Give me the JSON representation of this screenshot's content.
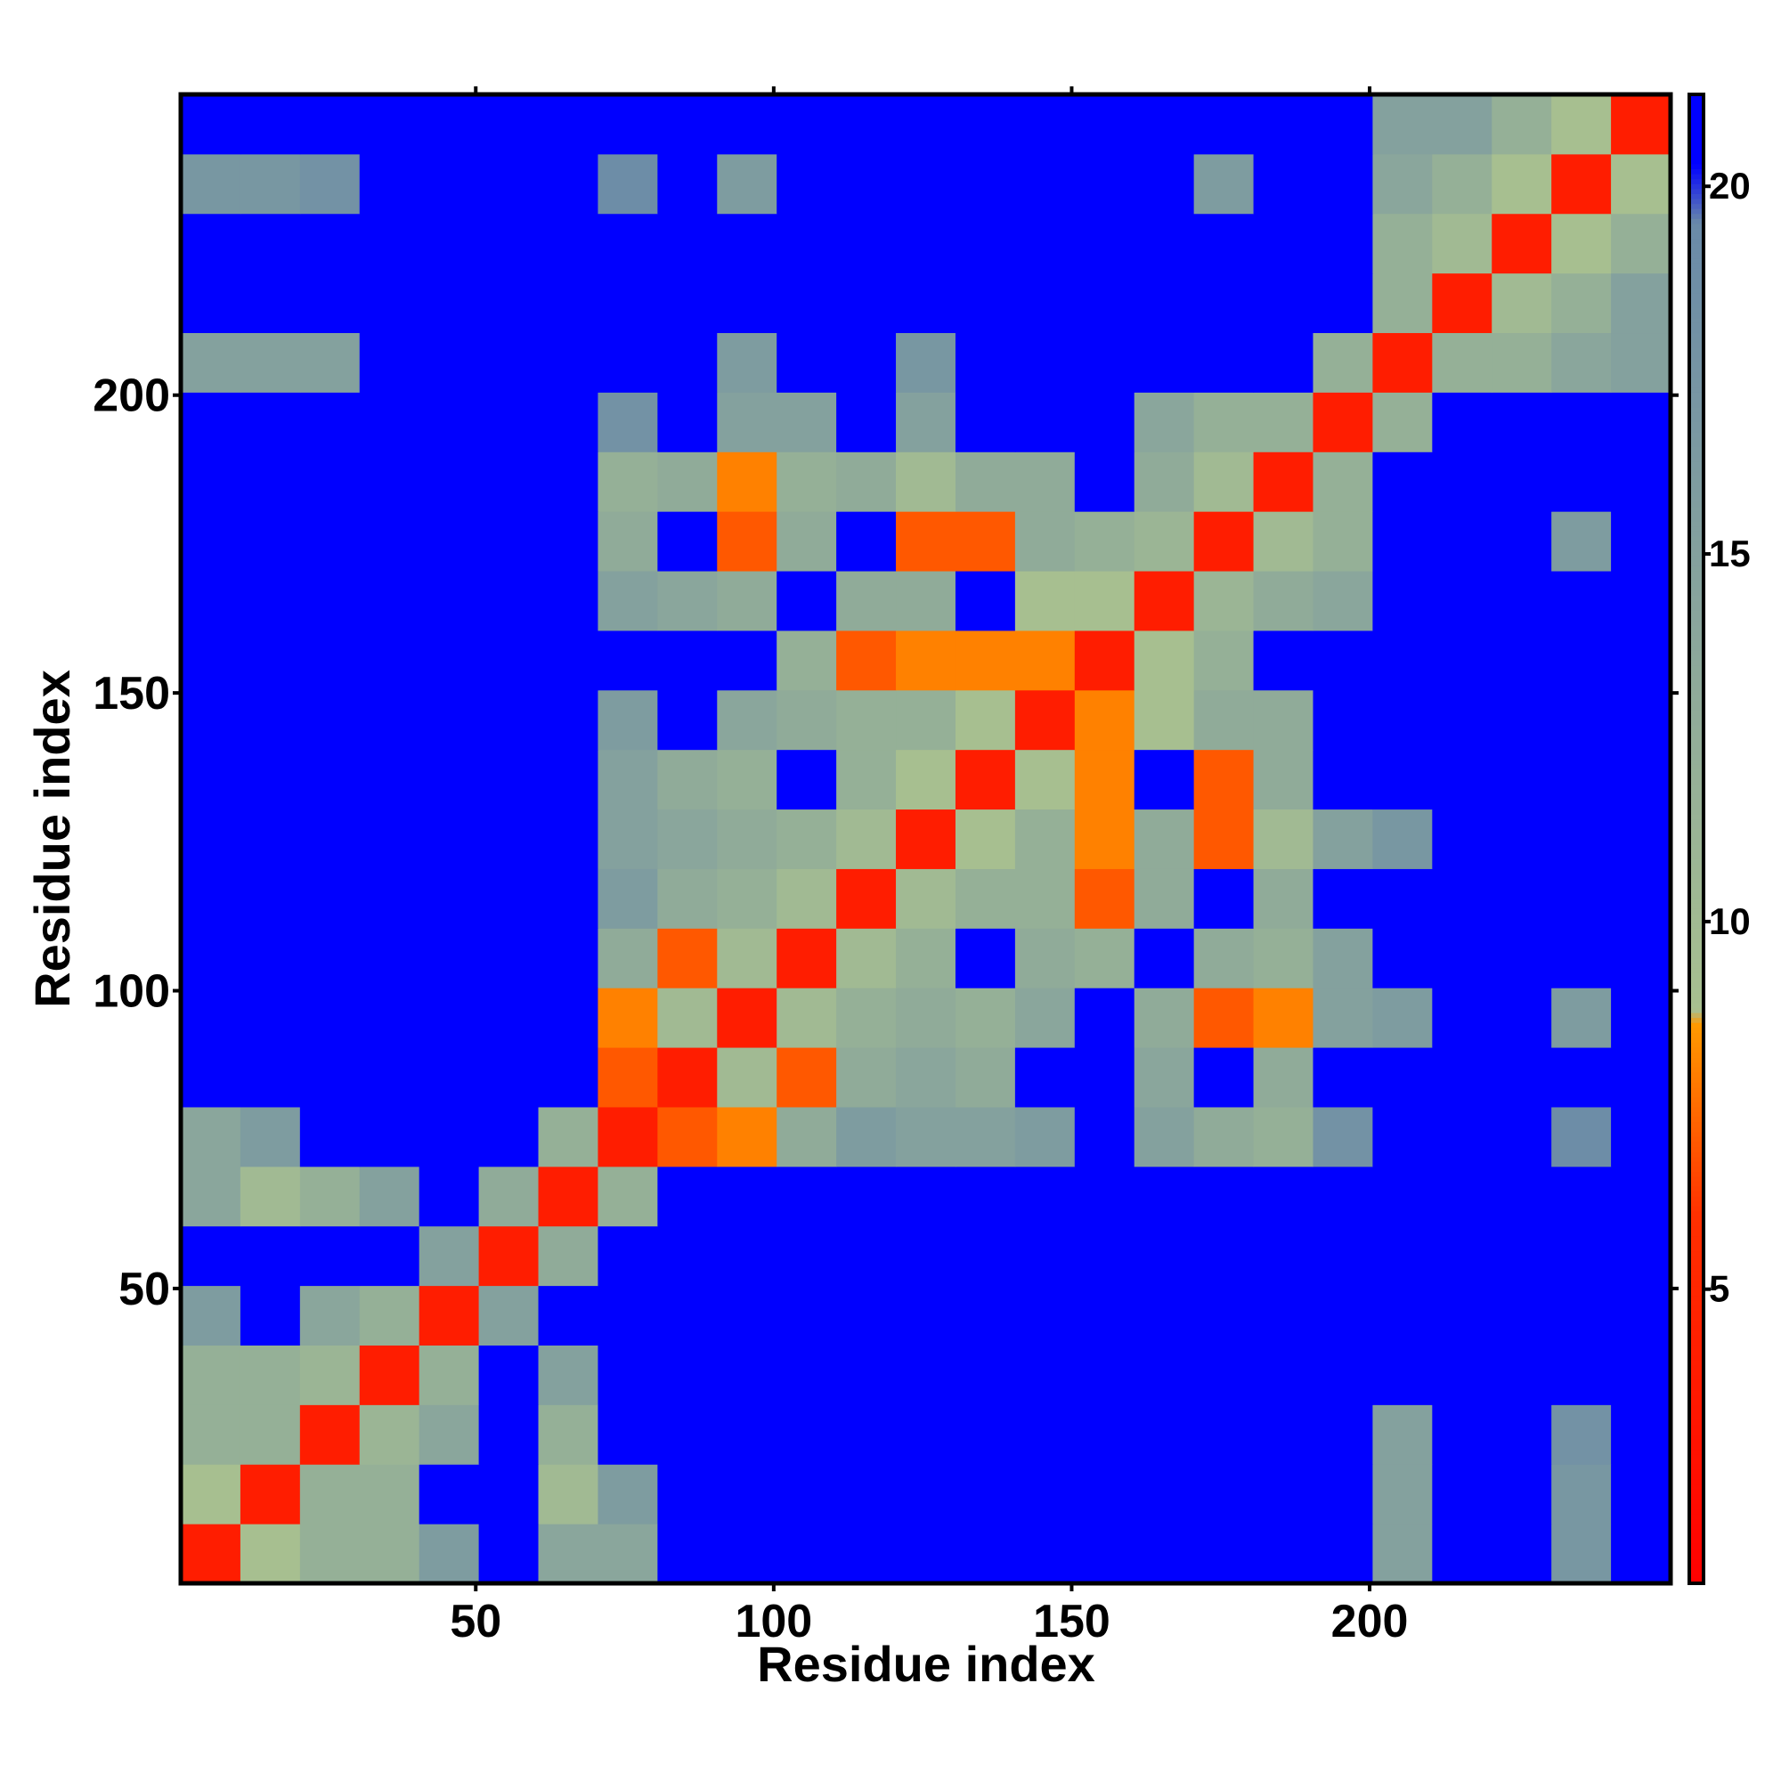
{
  "chart_data": {
    "type": "heatmap",
    "xlabel": "Residue index",
    "ylabel": "Residue index",
    "xlim": [
      0.5,
      250.5
    ],
    "ylim": [
      0.5,
      250.5
    ],
    "xticks": [
      50,
      100,
      150,
      200
    ],
    "yticks": [
      50,
      100,
      150,
      200
    ],
    "zlim": [
      1,
      21.25
    ],
    "zticks": [
      5,
      10,
      15,
      20
    ],
    "colorscale": [
      {
        "value": 1,
        "color": "#ff0000"
      },
      {
        "value": 6,
        "color": "#ff3000"
      },
      {
        "value": 8.6,
        "color": "#ff9900"
      },
      {
        "value": 8.8,
        "color": "#a8c090"
      },
      {
        "value": 19.5,
        "color": "#6a8aa8"
      },
      {
        "value": 20.3,
        "color": "#0000ff"
      },
      {
        "value": 21.25,
        "color": "#0000ff"
      }
    ],
    "xbins": [
      0.5,
      10.5,
      20.5,
      30.5,
      40.5,
      50.5,
      60.5,
      70.5,
      80.5,
      90.5,
      100.5,
      110.5,
      120.5,
      130.5,
      140.5,
      150.5,
      160.5,
      170.5,
      180.5,
      190.5,
      200.5,
      210.5,
      220.5,
      230.5,
      240.5,
      250.5
    ],
    "ybins": [
      0.5,
      10.5,
      20.5,
      30.5,
      40.5,
      50.5,
      60.5,
      70.5,
      80.5,
      90.5,
      100.5,
      110.5,
      120.5,
      130.5,
      140.5,
      150.5,
      160.5,
      170.5,
      180.5,
      190.5,
      200.5,
      210.5,
      220.5,
      230.5,
      240.5,
      250.5
    ],
    "z": [
      [
        4,
        9,
        12,
        12,
        16,
        21,
        14,
        14,
        21,
        21,
        21,
        21,
        21,
        21,
        21,
        21,
        21,
        21,
        21,
        21,
        15,
        21,
        21,
        17,
        21
      ],
      [
        9,
        4,
        12,
        12,
        21,
        21,
        10,
        16,
        21,
        21,
        21,
        21,
        21,
        21,
        21,
        21,
        21,
        21,
        21,
        21,
        15,
        21,
        21,
        17,
        21
      ],
      [
        12,
        12,
        4,
        11,
        14,
        21,
        12,
        21,
        21,
        21,
        21,
        21,
        21,
        21,
        21,
        21,
        21,
        21,
        21,
        21,
        15,
        21,
        21,
        18,
        21
      ],
      [
        12,
        12,
        11,
        4,
        12,
        21,
        15,
        21,
        21,
        21,
        21,
        21,
        21,
        21,
        21,
        21,
        21,
        21,
        21,
        21,
        21,
        21,
        21,
        21,
        21
      ],
      [
        16,
        21,
        14,
        12,
        4,
        15,
        21,
        21,
        21,
        21,
        21,
        21,
        21,
        21,
        21,
        21,
        21,
        21,
        21,
        21,
        21,
        21,
        21,
        21,
        21
      ],
      [
        21,
        21,
        21,
        21,
        15,
        4,
        13,
        21,
        21,
        21,
        21,
        21,
        21,
        21,
        21,
        21,
        21,
        21,
        21,
        21,
        21,
        21,
        21,
        21,
        21
      ],
      [
        14,
        10,
        12,
        15,
        21,
        13,
        4,
        12,
        21,
        21,
        21,
        21,
        21,
        21,
        21,
        21,
        21,
        21,
        21,
        21,
        21,
        21,
        21,
        21,
        21
      ],
      [
        14,
        16,
        21,
        21,
        21,
        21,
        12,
        4,
        7,
        8,
        13,
        16,
        15,
        15,
        16,
        21,
        15,
        13,
        12,
        18,
        21,
        21,
        21,
        19,
        21
      ],
      [
        21,
        21,
        21,
        21,
        21,
        21,
        21,
        7,
        4,
        10,
        7,
        13,
        14,
        13,
        21,
        21,
        14,
        21,
        13,
        21,
        21,
        21,
        21,
        21,
        21
      ],
      [
        21,
        21,
        21,
        21,
        21,
        21,
        21,
        8,
        10,
        4,
        10,
        12,
        13,
        12,
        14,
        21,
        13,
        7,
        8,
        15,
        16,
        21,
        21,
        16,
        21
      ],
      [
        21,
        21,
        21,
        21,
        21,
        21,
        21,
        13,
        7,
        10,
        4,
        10,
        12,
        21,
        13,
        12,
        21,
        13,
        12,
        15,
        21,
        21,
        21,
        21,
        21
      ],
      [
        21,
        21,
        21,
        21,
        21,
        21,
        21,
        16,
        13,
        12,
        10,
        4,
        10,
        12,
        12,
        7,
        13,
        21,
        13,
        21,
        21,
        21,
        21,
        21,
        21
      ],
      [
        21,
        21,
        21,
        21,
        21,
        21,
        21,
        15,
        14,
        13,
        12,
        10,
        4,
        9,
        12,
        8,
        13,
        7,
        10,
        15,
        17,
        21,
        21,
        21,
        21
      ],
      [
        21,
        21,
        21,
        21,
        21,
        21,
        21,
        15,
        13,
        12,
        21,
        12,
        9,
        4,
        9,
        8,
        21,
        7,
        13,
        21,
        21,
        21,
        21,
        21,
        21
      ],
      [
        21,
        21,
        21,
        21,
        21,
        21,
        21,
        16,
        21,
        14,
        13,
        12,
        12,
        9,
        4,
        8,
        9,
        13,
        13,
        21,
        21,
        21,
        21,
        21,
        21
      ],
      [
        21,
        21,
        21,
        21,
        21,
        21,
        21,
        21,
        21,
        21,
        12,
        7,
        8,
        8,
        8,
        4,
        9,
        12,
        21,
        21,
        21,
        21,
        21,
        21,
        21
      ],
      [
        21,
        21,
        21,
        21,
        21,
        21,
        21,
        15,
        14,
        13,
        21,
        13,
        13,
        21,
        9,
        9,
        4,
        11,
        13,
        14,
        21,
        21,
        21,
        21,
        21
      ],
      [
        21,
        21,
        21,
        21,
        21,
        21,
        21,
        13,
        21,
        7,
        13,
        21,
        7,
        7,
        13,
        12,
        11,
        4,
        10,
        12,
        21,
        21,
        21,
        16,
        21
      ],
      [
        21,
        21,
        21,
        21,
        21,
        21,
        21,
        12,
        13,
        8,
        12,
        13,
        10,
        13,
        13,
        21,
        13,
        10,
        4,
        12,
        21,
        21,
        21,
        21,
        21
      ],
      [
        21,
        21,
        21,
        21,
        21,
        21,
        21,
        18,
        21,
        15,
        15,
        21,
        15,
        21,
        21,
        21,
        14,
        12,
        12,
        4,
        12,
        21,
        21,
        21,
        21
      ],
      [
        15,
        15,
        15,
        21,
        21,
        21,
        21,
        21,
        21,
        16,
        21,
        21,
        17,
        21,
        21,
        21,
        21,
        21,
        21,
        12,
        4,
        12,
        12,
        14,
        15
      ],
      [
        21,
        21,
        21,
        21,
        21,
        21,
        21,
        21,
        21,
        21,
        21,
        21,
        21,
        21,
        21,
        21,
        21,
        21,
        21,
        21,
        12,
        4,
        10,
        12,
        15
      ],
      [
        21,
        21,
        21,
        21,
        21,
        21,
        21,
        21,
        21,
        21,
        21,
        21,
        21,
        21,
        21,
        21,
        21,
        21,
        21,
        21,
        12,
        10,
        4,
        9,
        12
      ],
      [
        17,
        17,
        18,
        21,
        21,
        21,
        21,
        19,
        21,
        16,
        21,
        21,
        21,
        21,
        21,
        21,
        21,
        16,
        21,
        21,
        14,
        12,
        9,
        4,
        9
      ],
      [
        21,
        21,
        21,
        21,
        21,
        21,
        21,
        21,
        21,
        21,
        21,
        21,
        21,
        21,
        21,
        21,
        21,
        21,
        21,
        21,
        15,
        15,
        12,
        9,
        4
      ]
    ]
  }
}
